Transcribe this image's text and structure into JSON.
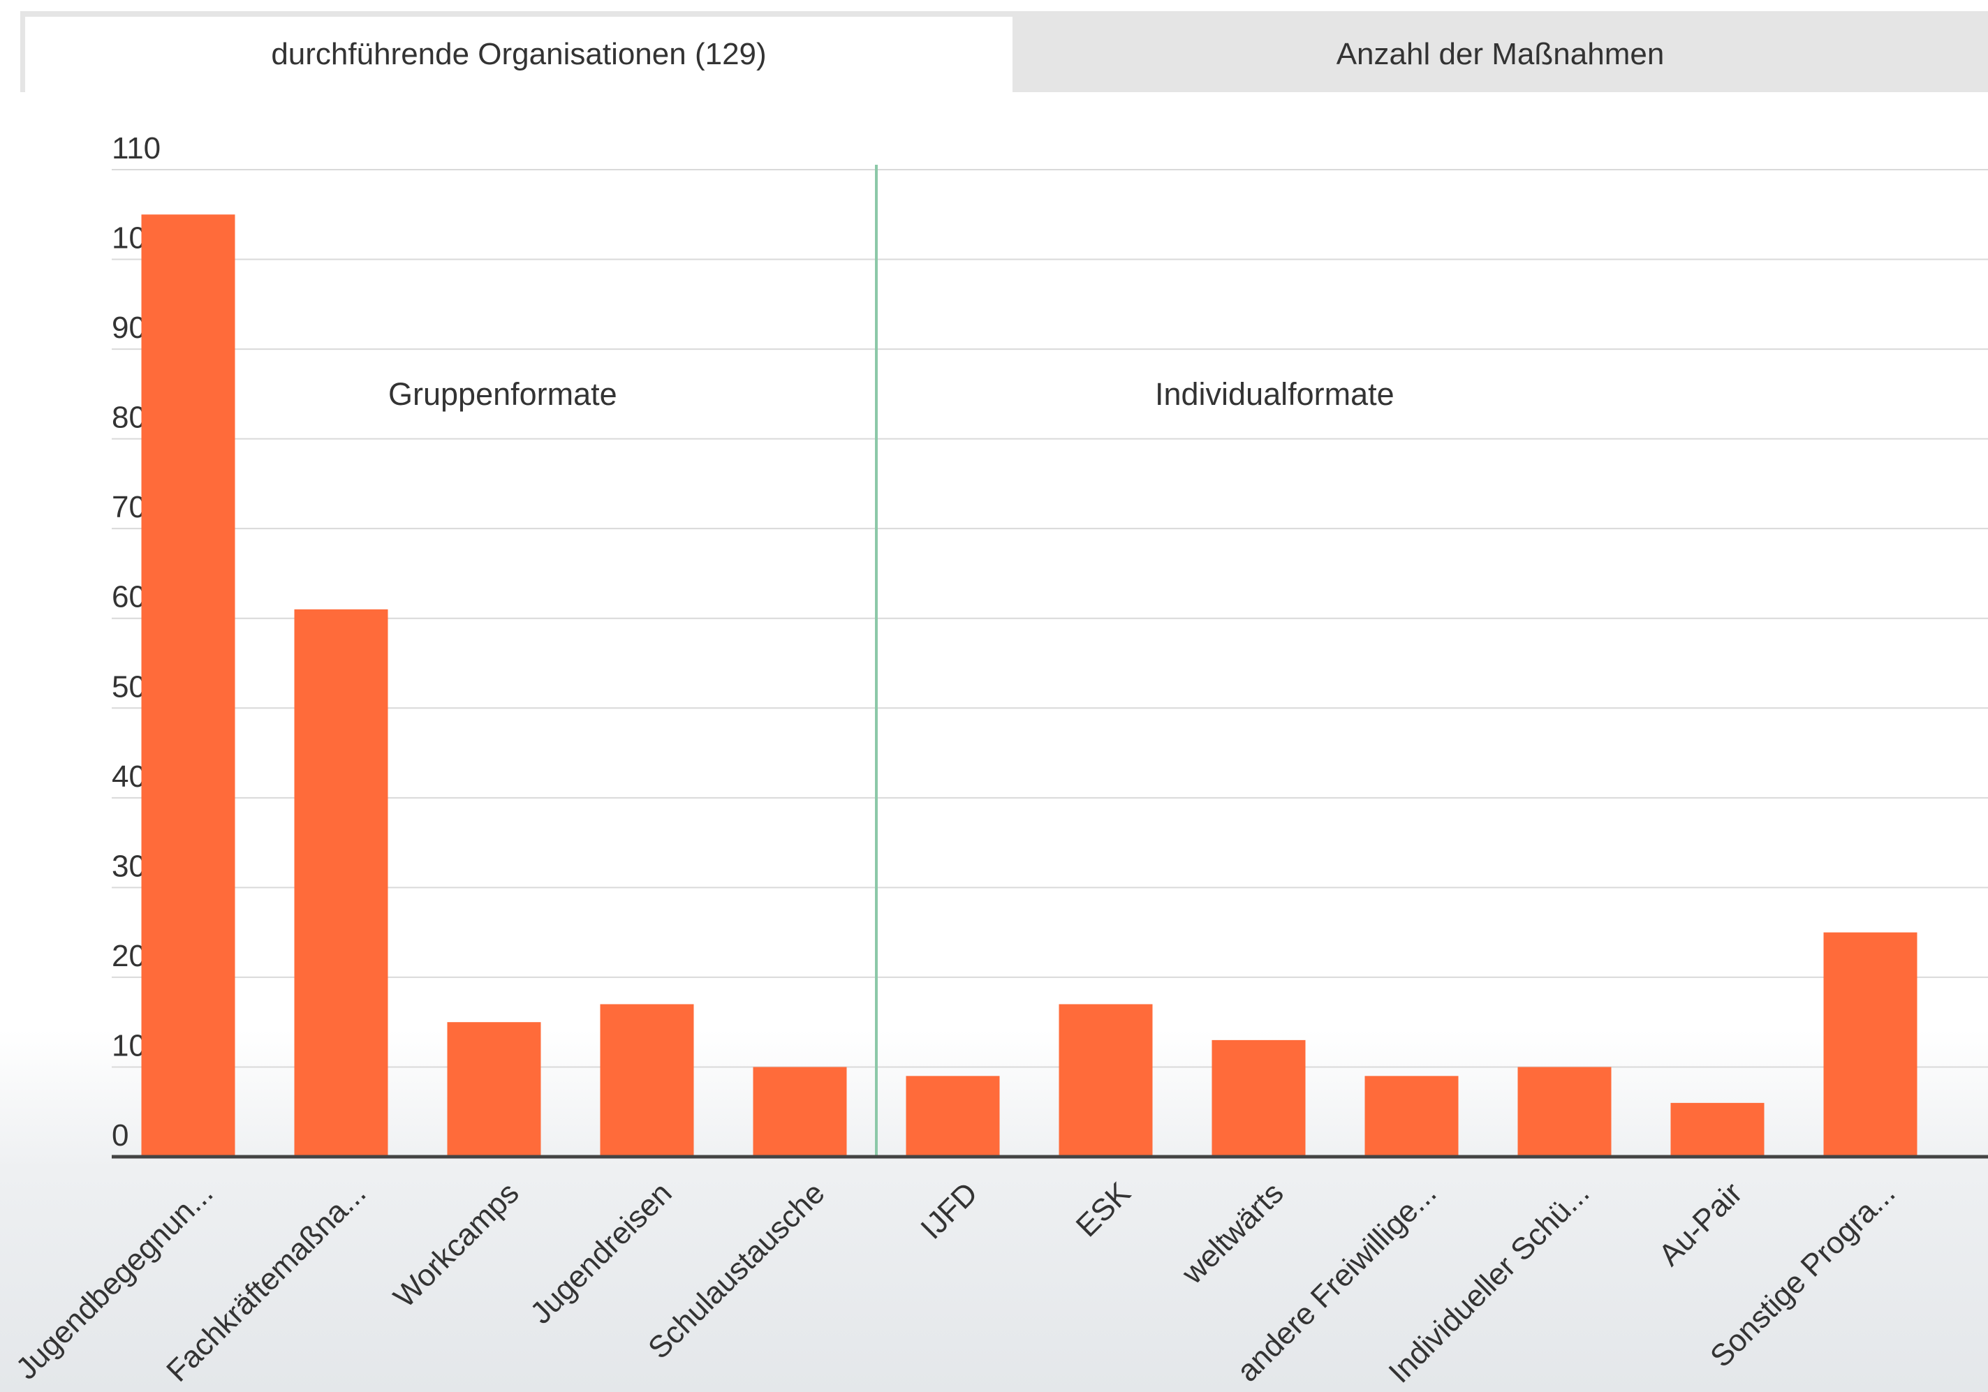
{
  "tabs": [
    {
      "label": "durchführende Organisationen (129)",
      "active": true
    },
    {
      "label": "Anzahl der Maßnahmen",
      "active": false
    }
  ],
  "colors": {
    "bar": "#ff6b3a",
    "divider": "#8cc8a8",
    "grid": "#d9d9d9",
    "axis": "#444444",
    "tab_active": "#ffffff",
    "tab_inactive": "#e5e5e5"
  },
  "chart_data": {
    "type": "bar",
    "ylim": [
      0,
      110
    ],
    "yticks": [
      0,
      10,
      20,
      30,
      40,
      50,
      60,
      70,
      80,
      90,
      100,
      110
    ],
    "grid": true,
    "categories": [
      "Jugendbegegnun...",
      "Fachkräftemaßna...",
      "Workcamps",
      "Jugendreisen",
      "Schulaustausche",
      "IJFD",
      "ESK",
      "weltwärts",
      "andere Freiwillige...",
      "Individueller Schü...",
      "Au-Pair",
      "Sonstige Progra..."
    ],
    "values": [
      105,
      61,
      15,
      17,
      10,
      9,
      17,
      13,
      9,
      10,
      6,
      25
    ],
    "groups": [
      {
        "label": "Gruppenformate",
        "categories": 5
      },
      {
        "label": "Individualformate",
        "categories": 7
      }
    ]
  }
}
